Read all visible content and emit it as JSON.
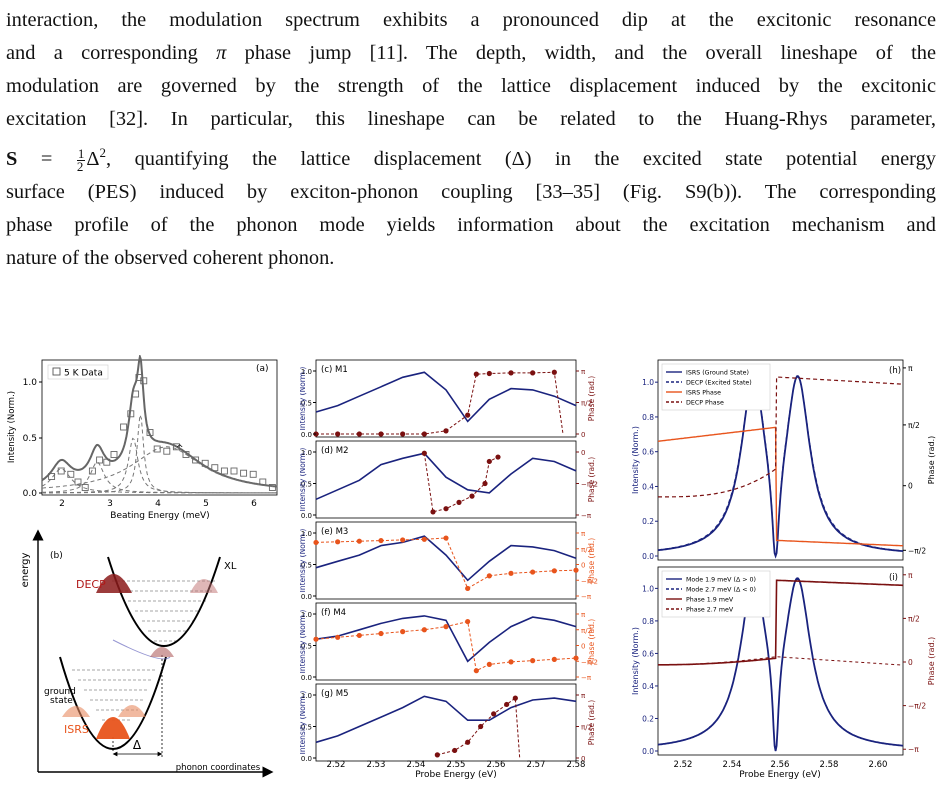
{
  "paragraph": {
    "l1": "interaction, the modulation spectrum exhibits a pronounced dip at the excitonic resonance",
    "l2a": "and a corresponding ",
    "l2pi": "π",
    "l2b": " phase jump [11]. The depth, width, and the overall lineshape of the",
    "l3": "modulation are governed by the strength of the lattice displacement induced by the excitonic",
    "l4": "excitation [32]. In particular, this lineshape can be related to the Huang-Rhys parameter,",
    "l5S": "S",
    "l5eq": " = ",
    "l5num": "1",
    "l5den": "2",
    "l5delta": "Δ",
    "l5sup": "2",
    "l5b": ", quantifying the lattice displacement (Δ) in the excited state potential energy",
    "l6": "surface (PES) induced by exciton-phonon coupling [33–35] (Fig. S9(b)). The corresponding",
    "l7": "phase profile of the phonon mode yields information about the excitation mechanism and",
    "l8": "nature of the observed coherent phonon."
  },
  "panel_a": {
    "tag": "(a)",
    "legend": "5 K Data",
    "ylabel": "Intensity (Norm.)",
    "xlabel": "Beating Energy (meV)",
    "yticks": [
      "0.0",
      "0.5",
      "1.0"
    ],
    "xticks": [
      "2",
      "3",
      "4",
      "5",
      "6"
    ],
    "caret": "^"
  },
  "panel_b": {
    "tag": "(b)",
    "decp": "DECP",
    "xl": "XL",
    "ground1": "ground",
    "ground2": "state",
    "isrs": "ISRS",
    "delta": "Δ",
    "xlabel": "phonon coordinates",
    "ylabel": "energy"
  },
  "middle": {
    "ylabel": "Intensity (Norm.)",
    "ylabel_right": "Phase (rad.)",
    "xlabel": "Probe Energy (eV)",
    "xticks": [
      "2.52",
      "2.53",
      "2.54",
      "2.55",
      "2.56",
      "2.57",
      "2.58"
    ],
    "panels": [
      {
        "tag": "(c) M1",
        "lt": [
          "0.0",
          "0.5",
          "1.0"
        ],
        "rt": [
          "0",
          "π/2",
          "π"
        ],
        "color": "#7a1010"
      },
      {
        "tag": "(d) M2",
        "lt": [
          "0.0",
          "0.5",
          "1.0"
        ],
        "rt": [
          "−π",
          "−π/2",
          "0"
        ],
        "color": "#7a1010"
      },
      {
        "tag": "(e) M3",
        "lt": [
          "0.0",
          "0.5",
          "1.0"
        ],
        "rt": [
          "−π",
          "−π/2",
          "0",
          "π/2",
          "π"
        ],
        "color": "#e8541c"
      },
      {
        "tag": "(f) M4",
        "lt": [
          "0.0",
          "0.5",
          "1.0"
        ],
        "rt": [
          "−π",
          "−π/2",
          "0",
          "π/2",
          "π"
        ],
        "color": "#e8541c"
      },
      {
        "tag": "(g) M5",
        "lt": [
          "0.0",
          "0.5",
          "1.0"
        ],
        "rt": [
          "0",
          "π/2",
          "π"
        ],
        "color": "#7a1010"
      }
    ]
  },
  "panel_h": {
    "tag": "(h)",
    "legend": [
      "ISRS (Ground State)",
      "DECP (Excited State)",
      "ISRS Phase",
      "DECP Phase"
    ],
    "ylabel": "Intensity (Norm.)",
    "ylabel_right": "Phase (rad.)",
    "yticks": [
      "0.0",
      "0.2",
      "0.4",
      "0.6",
      "0.8",
      "1.0"
    ],
    "rticks": [
      "−π/2",
      "0",
      "π/2",
      "π"
    ]
  },
  "panel_i": {
    "tag": "(i)",
    "legend": [
      "Mode 1.9 meV (Δ > 0)",
      "Mode 2.7 meV (Δ < 0)",
      "Phase 1.9 meV",
      "Phase 2.7 meV"
    ],
    "ylabel": "Intensity (Norm.)",
    "ylabel_right": "Phase (rad.)",
    "yticks": [
      "0.0",
      "0.2",
      "0.4",
      "0.6",
      "0.8",
      "1.0"
    ],
    "rticks": [
      "−π",
      "−π/2",
      "0",
      "π/2",
      "π"
    ],
    "xlabel": "Probe Energy (eV)",
    "xticks": [
      "2.52",
      "2.54",
      "2.56",
      "2.58",
      "2.60"
    ]
  },
  "colors": {
    "navy": "#1a237e",
    "maroon": "#7a1010",
    "orange": "#e8541c",
    "gray": "#666666"
  }
}
